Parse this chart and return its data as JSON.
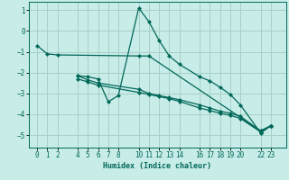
{
  "xlabel": "Humidex (Indice chaleur)",
  "bg_color": "#c8ece8",
  "grid_color": "#a8d0c8",
  "line_color": "#006858",
  "xticks": [
    0,
    1,
    2,
    4,
    5,
    6,
    7,
    8,
    10,
    11,
    12,
    13,
    14,
    16,
    17,
    18,
    19,
    20,
    22,
    23
  ],
  "ylim": [
    -5.6,
    1.4
  ],
  "xlim": [
    -0.8,
    24.5
  ],
  "yticks": [
    1,
    0,
    -1,
    -2,
    -3,
    -4,
    -5
  ],
  "lines": [
    {
      "x": [
        0,
        1,
        2,
        10,
        11,
        22,
        23
      ],
      "y": [
        -0.7,
        -1.1,
        -1.15,
        -1.2,
        -1.2,
        -4.8,
        -4.55
      ]
    },
    {
      "x": [
        4,
        5,
        6,
        7,
        8,
        10,
        11,
        12,
        13,
        14,
        16,
        17,
        18,
        19,
        20,
        22,
        23
      ],
      "y": [
        -2.15,
        -2.2,
        -2.3,
        -3.4,
        -3.1,
        1.1,
        0.45,
        -0.45,
        -1.2,
        -1.6,
        -2.2,
        -2.4,
        -2.7,
        -3.05,
        -3.55,
        -4.9,
        -4.55
      ]
    },
    {
      "x": [
        4,
        5,
        6,
        10,
        11,
        12,
        13,
        14,
        16,
        17,
        18,
        19,
        20,
        22,
        23
      ],
      "y": [
        -2.15,
        -2.35,
        -2.5,
        -2.8,
        -3.0,
        -3.1,
        -3.2,
        -3.3,
        -3.55,
        -3.7,
        -3.85,
        -3.95,
        -4.1,
        -4.8,
        -4.55
      ]
    },
    {
      "x": [
        4,
        5,
        6,
        10,
        11,
        12,
        13,
        14,
        16,
        17,
        18,
        19,
        20,
        22,
        23
      ],
      "y": [
        -2.3,
        -2.45,
        -2.6,
        -2.95,
        -3.05,
        -3.15,
        -3.25,
        -3.38,
        -3.7,
        -3.82,
        -3.95,
        -4.05,
        -4.2,
        -4.85,
        -4.55
      ]
    }
  ]
}
